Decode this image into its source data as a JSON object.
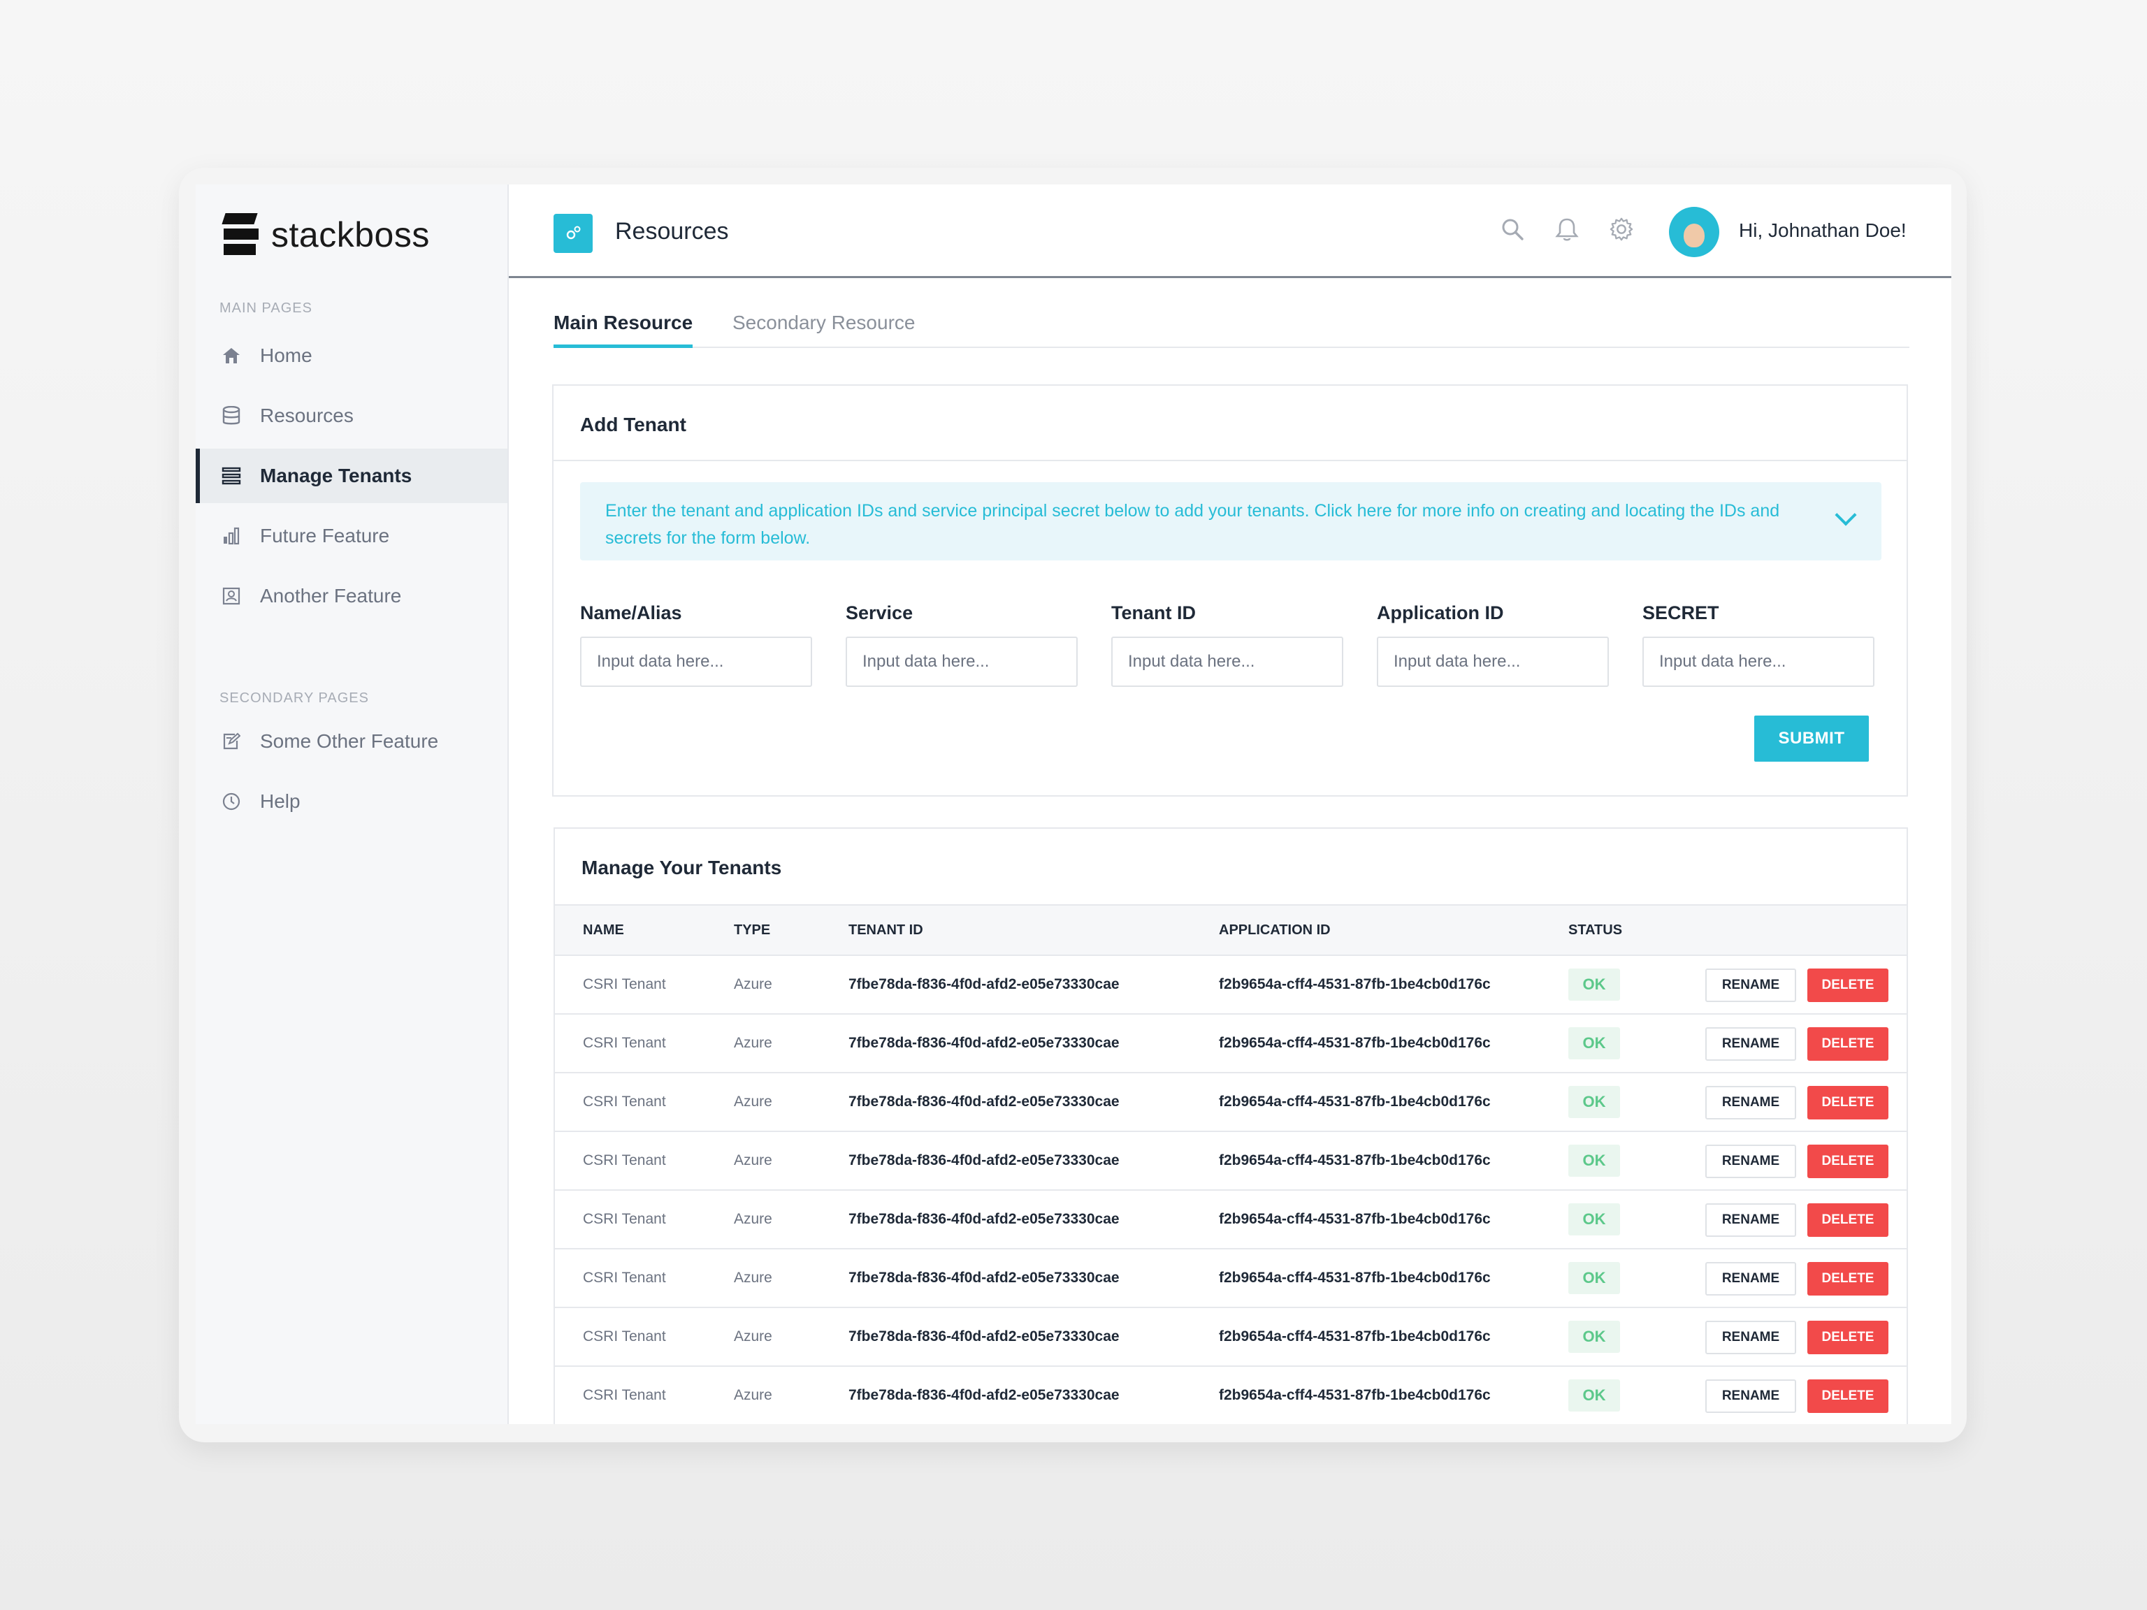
{
  "brand": {
    "name": "stackboss"
  },
  "sidebar": {
    "main_label": "MAIN PAGES",
    "main_items": [
      {
        "label": "Home",
        "icon": "home-icon"
      },
      {
        "label": "Resources",
        "icon": "database-icon"
      },
      {
        "label": "Manage Tenants",
        "icon": "list-icon",
        "active": true
      },
      {
        "label": "Future Feature",
        "icon": "bar-chart-icon"
      },
      {
        "label": "Another Feature",
        "icon": "id-card-icon"
      }
    ],
    "secondary_label": "SECONDARY PAGES",
    "secondary_items": [
      {
        "label": "Some Other Feature",
        "icon": "edit-icon"
      },
      {
        "label": "Help",
        "icon": "clock-icon"
      }
    ]
  },
  "header": {
    "title": "Resources",
    "greeting": "Hi, Johnathan Doe!"
  },
  "tabs": [
    {
      "label": "Main Resource",
      "active": true
    },
    {
      "label": "Secondary Resource",
      "active": false
    }
  ],
  "add_tenant": {
    "title": "Add Tenant",
    "info": "Enter the tenant and application IDs and service principal secret below to add your tenants. Click here for more info on creating and locating the IDs and secrets for the form below.",
    "fields": [
      {
        "label": "Name/Alias",
        "placeholder": "Input data here..."
      },
      {
        "label": "Service",
        "placeholder": "Input data here..."
      },
      {
        "label": "Tenant ID",
        "placeholder": "Input data here..."
      },
      {
        "label": "Application ID",
        "placeholder": "Input data here..."
      },
      {
        "label": "SECRET",
        "placeholder": "Input data here..."
      }
    ],
    "submit": "SUBMIT"
  },
  "tenants": {
    "title": "Manage Your Tenants",
    "columns": [
      "NAME",
      "TYPE",
      "TENANT ID",
      "APPLICATION ID",
      "STATUS"
    ],
    "rename_label": "RENAME",
    "delete_label": "DELETE",
    "rows": [
      {
        "name": "CSRI Tenant",
        "type": "Azure",
        "tenant_id": "7fbe78da-f836-4f0d-afd2-e05e73330cae",
        "app_id": "f2b9654a-cff4-4531-87fb-1be4cb0d176c",
        "status": "OK"
      },
      {
        "name": "CSRI Tenant",
        "type": "Azure",
        "tenant_id": "7fbe78da-f836-4f0d-afd2-e05e73330cae",
        "app_id": "f2b9654a-cff4-4531-87fb-1be4cb0d176c",
        "status": "OK"
      },
      {
        "name": "CSRI Tenant",
        "type": "Azure",
        "tenant_id": "7fbe78da-f836-4f0d-afd2-e05e73330cae",
        "app_id": "f2b9654a-cff4-4531-87fb-1be4cb0d176c",
        "status": "OK"
      },
      {
        "name": "CSRI Tenant",
        "type": "Azure",
        "tenant_id": "7fbe78da-f836-4f0d-afd2-e05e73330cae",
        "app_id": "f2b9654a-cff4-4531-87fb-1be4cb0d176c",
        "status": "OK"
      },
      {
        "name": "CSRI Tenant",
        "type": "Azure",
        "tenant_id": "7fbe78da-f836-4f0d-afd2-e05e73330cae",
        "app_id": "f2b9654a-cff4-4531-87fb-1be4cb0d176c",
        "status": "OK"
      },
      {
        "name": "CSRI Tenant",
        "type": "Azure",
        "tenant_id": "7fbe78da-f836-4f0d-afd2-e05e73330cae",
        "app_id": "f2b9654a-cff4-4531-87fb-1be4cb0d176c",
        "status": "OK"
      },
      {
        "name": "CSRI Tenant",
        "type": "Azure",
        "tenant_id": "7fbe78da-f836-4f0d-afd2-e05e73330cae",
        "app_id": "f2b9654a-cff4-4531-87fb-1be4cb0d176c",
        "status": "OK"
      },
      {
        "name": "CSRI Tenant",
        "type": "Azure",
        "tenant_id": "7fbe78da-f836-4f0d-afd2-e05e73330cae",
        "app_id": "f2b9654a-cff4-4531-87fb-1be4cb0d176c",
        "status": "OK"
      }
    ]
  },
  "colors": {
    "accent": "#27bcd6",
    "danger": "#f24a4a",
    "ok": "#5cc88a",
    "text": "#1f2937"
  }
}
